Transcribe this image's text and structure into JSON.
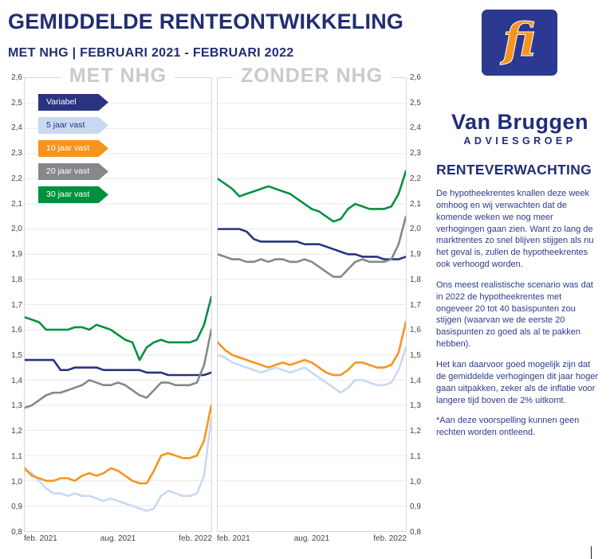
{
  "header": {
    "title": "GEMIDDELDE RENTEONTWIKKELING",
    "subtitle": "MET NHG | FEBRUARI 2021 - FEBRUARI 2022"
  },
  "sidebar": {
    "logo_text": "fi",
    "brand_name": "Van Bruggen",
    "brand_subtitle": "ADVIESGROEP",
    "heading": "RENTEVERWACHTING",
    "paragraphs": [
      "De hypotheekrentes knallen deze week omhoog en wij verwachten dat de komende weken we nog meer verhogingen gaan zien. Want zo lang de marktrentes zo snel blijven stijgen als nu het geval is, zullen de hypotheekrentes ook verhoogd worden.",
      "Ons meest realistische scenario was dat in 2022 de hypotheekrentes met ongeveer 20 tot 40 basispunten zou stijgen (waarvan we de eerste 20 basispunten zo goed als al te pakken hebben).",
      "Het kan daarvoor goed mogelijk zijn dat de gemiddelde verhogingen dit jaar hoger gaan uitpakken, zeker als de inflatie voor langere tijd boven de 2% uitkomt.",
      "*Aan deze voorspelling kunnen geen rechten worden ontleend."
    ]
  },
  "chart_data": {
    "type": "line",
    "title": "GEMIDDELDE RENTEONTWIKKELING",
    "x_range": [
      "feb. 2021",
      "feb. 2022"
    ],
    "ylim": [
      0.8,
      2.6
    ],
    "ytick_step": 0.1,
    "yticks": [
      "2,6",
      "2,5",
      "2,4",
      "2,3",
      "2,2",
      "2,1",
      "2,0",
      "1,9",
      "1,8",
      "1,7",
      "1,6",
      "1,5",
      "1,4",
      "1,3",
      "1,2",
      "1,1",
      "1,0",
      "0,9",
      "0,8"
    ],
    "xticks": [
      "feb. 2021",
      "aug. 2021",
      "feb. 2022"
    ],
    "grid": true,
    "legend_position": "top-left of first panel",
    "legend": [
      {
        "label": "Variabel",
        "color": "#293380",
        "text_color": "#ffffff"
      },
      {
        "label": "5 jaar vast",
        "color": "#c9d9f1",
        "text_color": "#293380"
      },
      {
        "label": "10 jaar vast",
        "color": "#f7941e",
        "text_color": "#ffffff"
      },
      {
        "label": "20 jaar vast",
        "color": "#85878a",
        "text_color": "#ffffff"
      },
      {
        "label": "30 jaar vast",
        "color": "#00913f",
        "text_color": "#ffffff"
      }
    ],
    "panels": [
      {
        "title": "MET NHG",
        "series": [
          {
            "name": "Variabel",
            "color": "#293380",
            "values": [
              1.48,
              1.48,
              1.48,
              1.48,
              1.48,
              1.44,
              1.44,
              1.45,
              1.45,
              1.45,
              1.45,
              1.44,
              1.44,
              1.44,
              1.44,
              1.44,
              1.44,
              1.43,
              1.43,
              1.43,
              1.42,
              1.42,
              1.42,
              1.42,
              1.42,
              1.42,
              1.43
            ]
          },
          {
            "name": "5 jaar vast",
            "color": "#c9d9f1",
            "values": [
              1.04,
              1.03,
              1.0,
              0.97,
              0.95,
              0.95,
              0.94,
              0.95,
              0.94,
              0.94,
              0.93,
              0.92,
              0.93,
              0.92,
              0.91,
              0.9,
              0.89,
              0.88,
              0.89,
              0.94,
              0.96,
              0.95,
              0.94,
              0.94,
              0.95,
              1.02,
              1.25
            ]
          },
          {
            "name": "10 jaar vast",
            "color": "#f7941e",
            "values": [
              1.05,
              1.02,
              1.01,
              1.0,
              1.0,
              1.01,
              1.01,
              1.0,
              1.02,
              1.03,
              1.02,
              1.03,
              1.05,
              1.04,
              1.02,
              1.0,
              0.99,
              0.99,
              1.04,
              1.1,
              1.11,
              1.1,
              1.09,
              1.09,
              1.1,
              1.16,
              1.3
            ]
          },
          {
            "name": "20 jaar vast",
            "color": "#85878a",
            "values": [
              1.29,
              1.3,
              1.32,
              1.34,
              1.35,
              1.35,
              1.36,
              1.37,
              1.38,
              1.4,
              1.39,
              1.38,
              1.38,
              1.39,
              1.38,
              1.36,
              1.34,
              1.33,
              1.36,
              1.39,
              1.39,
              1.38,
              1.38,
              1.38,
              1.39,
              1.46,
              1.6
            ]
          },
          {
            "name": "30 jaar vast",
            "color": "#00913f",
            "values": [
              1.65,
              1.64,
              1.63,
              1.6,
              1.6,
              1.6,
              1.6,
              1.61,
              1.61,
              1.6,
              1.62,
              1.61,
              1.6,
              1.58,
              1.56,
              1.55,
              1.48,
              1.53,
              1.55,
              1.56,
              1.55,
              1.55,
              1.55,
              1.55,
              1.56,
              1.62,
              1.73
            ]
          }
        ]
      },
      {
        "title": "ZONDER NHG",
        "series": [
          {
            "name": "Variabel",
            "color": "#293380",
            "values": [
              2.0,
              2.0,
              2.0,
              2.0,
              1.99,
              1.96,
              1.95,
              1.95,
              1.95,
              1.95,
              1.95,
              1.95,
              1.94,
              1.94,
              1.94,
              1.93,
              1.92,
              1.91,
              1.9,
              1.9,
              1.89,
              1.89,
              1.89,
              1.88,
              1.88,
              1.88,
              1.89
            ]
          },
          {
            "name": "5 jaar vast",
            "color": "#c9d9f1",
            "values": [
              1.5,
              1.49,
              1.47,
              1.46,
              1.45,
              1.44,
              1.43,
              1.44,
              1.45,
              1.44,
              1.43,
              1.44,
              1.45,
              1.43,
              1.41,
              1.39,
              1.37,
              1.35,
              1.37,
              1.4,
              1.4,
              1.39,
              1.38,
              1.38,
              1.39,
              1.44,
              1.53
            ]
          },
          {
            "name": "10 jaar vast",
            "color": "#f7941e",
            "values": [
              1.55,
              1.52,
              1.5,
              1.49,
              1.48,
              1.47,
              1.46,
              1.45,
              1.46,
              1.47,
              1.46,
              1.47,
              1.48,
              1.47,
              1.45,
              1.43,
              1.42,
              1.42,
              1.44,
              1.47,
              1.47,
              1.46,
              1.45,
              1.45,
              1.46,
              1.51,
              1.63
            ]
          },
          {
            "name": "20 jaar vast",
            "color": "#85878a",
            "values": [
              1.9,
              1.89,
              1.88,
              1.88,
              1.87,
              1.87,
              1.88,
              1.87,
              1.88,
              1.88,
              1.87,
              1.87,
              1.88,
              1.87,
              1.85,
              1.83,
              1.81,
              1.81,
              1.84,
              1.87,
              1.88,
              1.87,
              1.87,
              1.87,
              1.88,
              1.94,
              2.05
            ]
          },
          {
            "name": "30 jaar vast",
            "color": "#00913f",
            "values": [
              2.2,
              2.18,
              2.16,
              2.13,
              2.14,
              2.15,
              2.16,
              2.17,
              2.16,
              2.15,
              2.14,
              2.12,
              2.1,
              2.08,
              2.07,
              2.05,
              2.03,
              2.04,
              2.08,
              2.1,
              2.09,
              2.08,
              2.08,
              2.08,
              2.09,
              2.14,
              2.23
            ]
          }
        ]
      }
    ]
  }
}
